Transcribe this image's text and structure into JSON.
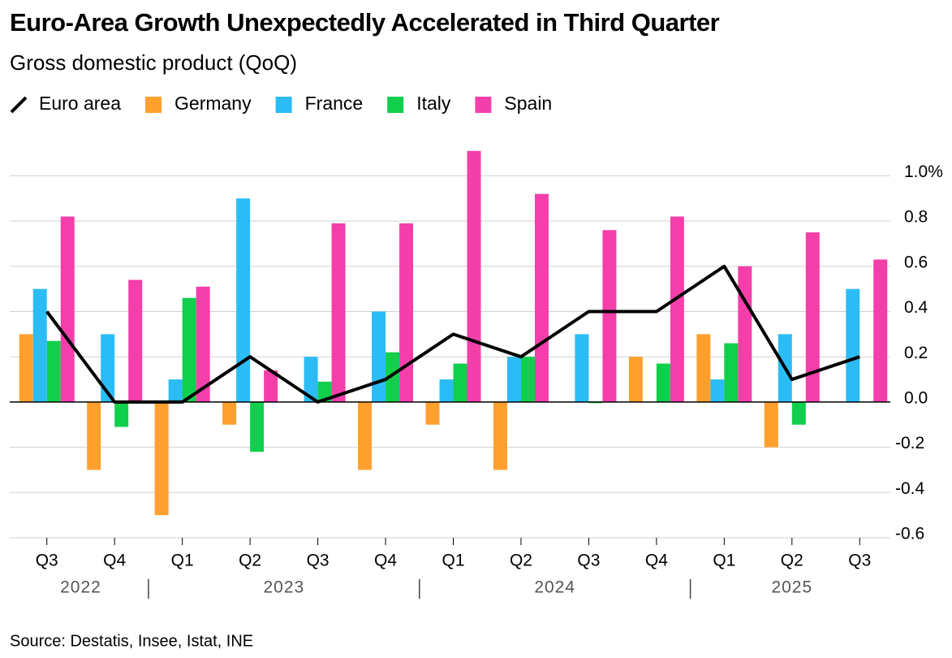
{
  "chart_data": {
    "type": "bar",
    "title": "Euro-Area Growth Unexpectedly Accelerated in Third Quarter",
    "subtitle": "Gross domestic product (QoQ)",
    "source": "Source: Destatis, Insee, Istat, INE",
    "categories": [
      "Q3",
      "Q4",
      "Q1",
      "Q2",
      "Q3",
      "Q4",
      "Q1",
      "Q2",
      "Q3",
      "Q4",
      "Q1",
      "Q2",
      "Q3"
    ],
    "x_groups": [
      "2022",
      "2023",
      "2024",
      "2025"
    ],
    "series": [
      {
        "name": "Euro area",
        "type": "line",
        "color": "#000000",
        "values": [
          0.4,
          0.0,
          0.0,
          0.2,
          0.0,
          0.1,
          0.3,
          0.2,
          0.4,
          0.4,
          0.6,
          0.1,
          0.2
        ]
      },
      {
        "name": "Germany",
        "type": "bar",
        "color": "#ffa02e",
        "values": [
          0.3,
          -0.3,
          -0.5,
          -0.1,
          0.0,
          -0.3,
          -0.1,
          -0.3,
          0.0,
          0.2,
          0.3,
          -0.2,
          0.0
        ]
      },
      {
        "name": "France",
        "type": "bar",
        "color": "#2bbcf5",
        "values": [
          0.5,
          0.3,
          0.1,
          0.9,
          0.2,
          0.4,
          0.1,
          0.2,
          0.3,
          0.0,
          0.1,
          0.3,
          0.5
        ]
      },
      {
        "name": "Italy",
        "type": "bar",
        "color": "#10cf4c",
        "values": [
          0.27,
          -0.11,
          0.46,
          -0.22,
          0.09,
          0.22,
          0.17,
          0.2,
          -0.005,
          0.17,
          0.26,
          -0.1,
          0.0
        ]
      },
      {
        "name": "Spain",
        "type": "bar",
        "color": "#f43fab",
        "values": [
          0.82,
          0.54,
          0.51,
          0.14,
          0.79,
          0.79,
          1.11,
          0.92,
          0.76,
          0.82,
          0.6,
          0.75,
          0.63
        ]
      }
    ],
    "ylim": [
      -0.6,
      1.12
    ],
    "yticks": [
      {
        "value": 1.0,
        "label": "1.0%"
      },
      0.8,
      0.6,
      0.4,
      0.2,
      {
        "value": 0,
        "label": "0.0"
      },
      -0.2,
      -0.4,
      -0.6
    ],
    "grid": true
  }
}
